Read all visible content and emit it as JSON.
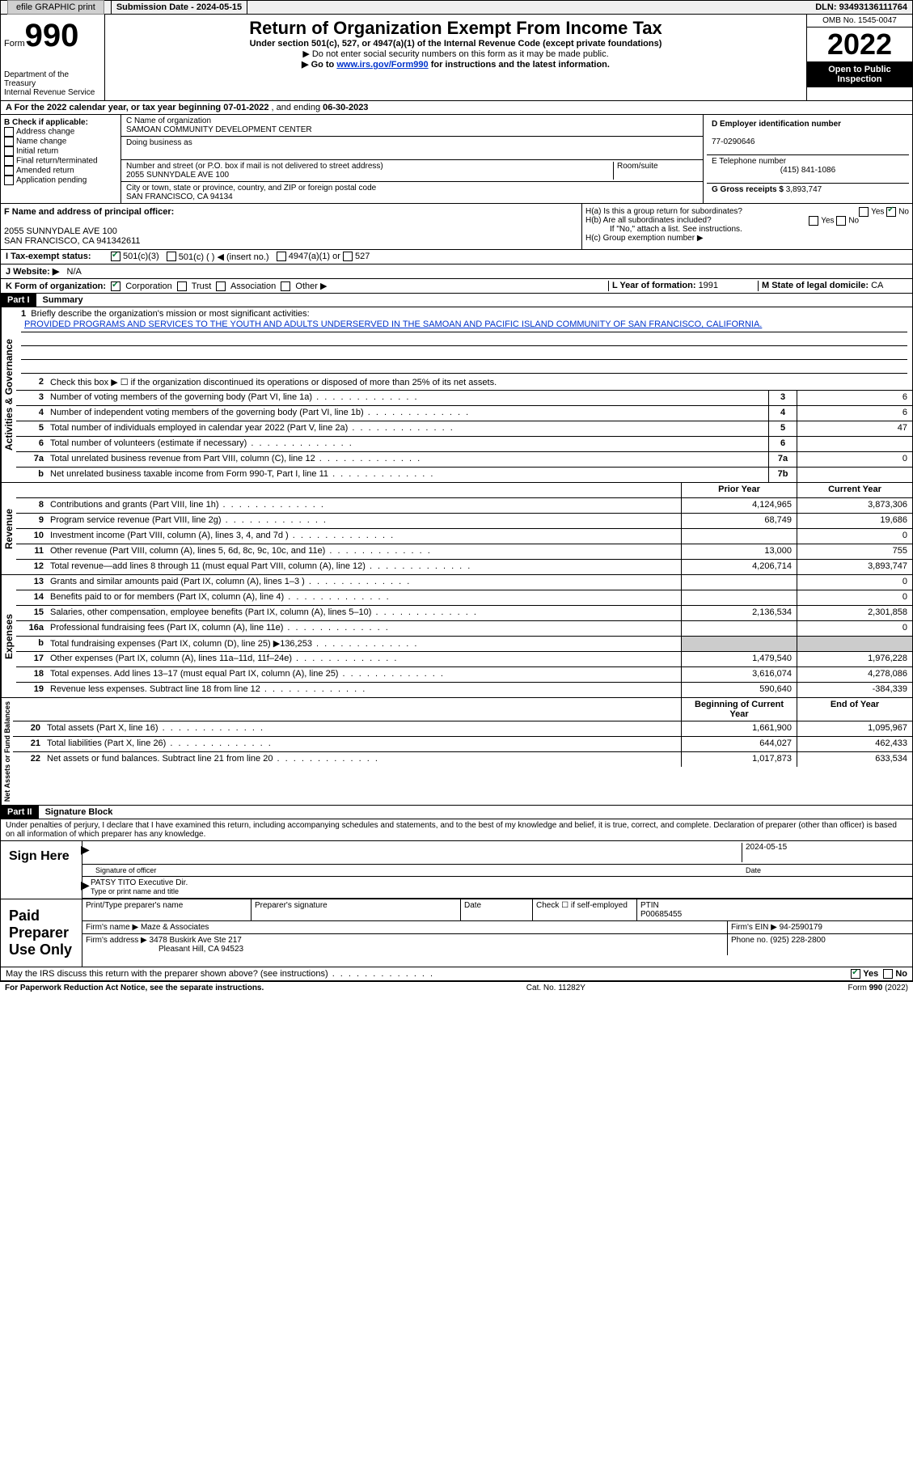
{
  "topbar": {
    "efile": "efile GRAPHIC print",
    "submission_label": "Submission Date - ",
    "submission_date": "2024-05-15",
    "dln_label": "DLN: ",
    "dln": "93493136111764"
  },
  "header": {
    "form_word": "Form",
    "form_num": "990",
    "dept": "Department of the Treasury",
    "irs": "Internal Revenue Service",
    "title": "Return of Organization Exempt From Income Tax",
    "subtitle": "Under section 501(c), 527, or 4947(a)(1) of the Internal Revenue Code (except private foundations)",
    "note1": "▶ Do not enter social security numbers on this form as it may be made public.",
    "note2_pre": "▶ Go to ",
    "note2_link": "www.irs.gov/Form990",
    "note2_post": " for instructions and the latest information.",
    "omb": "OMB No. 1545-0047",
    "year": "2022",
    "open": "Open to Public Inspection"
  },
  "line_a": {
    "text_pre": "A For the 2022 calendar year, or tax year beginning ",
    "begin": "07-01-2022",
    "mid": " , and ending ",
    "end": "06-30-2023"
  },
  "col_b": {
    "header": "B Check if applicable:",
    "opts": [
      "Address change",
      "Name change",
      "Initial return",
      "Final return/terminated",
      "Amended return",
      "Application pending"
    ]
  },
  "col_c": {
    "name_label": "C Name of organization",
    "name": "SAMOAN COMMUNITY DEVELOPMENT CENTER",
    "dba_label": "Doing business as",
    "addr_label": "Number and street (or P.O. box if mail is not delivered to street address)",
    "room_label": "Room/suite",
    "addr": "2055 SUNNYDALE AVE 100",
    "city_label": "City or town, state or province, country, and ZIP or foreign postal code",
    "city": "SAN FRANCISCO, CA  94134"
  },
  "col_d": {
    "ein_label": "D Employer identification number",
    "ein": "77-0290646",
    "phone_label": "E Telephone number",
    "phone": "(415) 841-1086",
    "gross_label": "G Gross receipts $ ",
    "gross": "3,893,747"
  },
  "section_f": {
    "label": "F Name and address of principal officer:",
    "addr1": "2055 SUNNYDALE AVE 100",
    "addr2": "SAN FRANCISCO, CA  941342611"
  },
  "section_h": {
    "ha": "H(a)  Is this a group return for subordinates?",
    "hb": "H(b)  Are all subordinates included?",
    "hb_note": "If \"No,\" attach a list. See instructions.",
    "hc": "H(c)  Group exemption number ▶"
  },
  "line_i": {
    "label": "I  Tax-exempt status:",
    "opt1": "501(c)(3)",
    "opt2": "501(c) (  ) ◀ (insert no.)",
    "opt3": "4947(a)(1) or",
    "opt4": "527"
  },
  "line_j": {
    "label": "J  Website: ▶",
    "val": "N/A"
  },
  "line_k": {
    "label": "K Form of organization:",
    "opts": [
      "Corporation",
      "Trust",
      "Association",
      "Other ▶"
    ],
    "l_label": "L Year of formation: ",
    "l_val": "1991",
    "m_label": "M State of legal domicile: ",
    "m_val": "CA"
  },
  "parts": {
    "p1": "Part I",
    "p1_title": "Summary",
    "p2": "Part II",
    "p2_title": "Signature Block"
  },
  "summary": {
    "vlabels": [
      "Activities & Governance",
      "Revenue",
      "Expenses",
      "Net Assets or Fund Balances"
    ],
    "line1_label": "Briefly describe the organization's mission or most significant activities:",
    "line1_text": "PROVIDED PROGRAMS AND SERVICES TO THE YOUTH AND ADULTS UNDERSERVED IN THE SAMOAN AND PACIFIC ISLAND COMMUNITY OF SAN FRANCISCO, CALIFORNIA.",
    "line2": "Check this box ▶ ☐ if the organization discontinued its operations or disposed of more than 25% of its net assets.",
    "rows_ag": [
      {
        "n": "3",
        "d": "Number of voting members of the governing body (Part VI, line 1a)",
        "box": "3",
        "v": "6"
      },
      {
        "n": "4",
        "d": "Number of independent voting members of the governing body (Part VI, line 1b)",
        "box": "4",
        "v": "6"
      },
      {
        "n": "5",
        "d": "Total number of individuals employed in calendar year 2022 (Part V, line 2a)",
        "box": "5",
        "v": "47"
      },
      {
        "n": "6",
        "d": "Total number of volunteers (estimate if necessary)",
        "box": "6",
        "v": ""
      },
      {
        "n": "7a",
        "d": "Total unrelated business revenue from Part VIII, column (C), line 12",
        "box": "7a",
        "v": "0"
      },
      {
        "n": "b",
        "d": "Net unrelated business taxable income from Form 990-T, Part I, line 11",
        "box": "7b",
        "v": ""
      }
    ],
    "col_prior": "Prior Year",
    "col_current": "Current Year",
    "col_begin": "Beginning of Current Year",
    "col_end": "End of Year",
    "rows_rev": [
      {
        "n": "8",
        "d": "Contributions and grants (Part VIII, line 1h)",
        "p": "4,124,965",
        "c": "3,873,306"
      },
      {
        "n": "9",
        "d": "Program service revenue (Part VIII, line 2g)",
        "p": "68,749",
        "c": "19,686"
      },
      {
        "n": "10",
        "d": "Investment income (Part VIII, column (A), lines 3, 4, and 7d )",
        "p": "",
        "c": "0"
      },
      {
        "n": "11",
        "d": "Other revenue (Part VIII, column (A), lines 5, 6d, 8c, 9c, 10c, and 11e)",
        "p": "13,000",
        "c": "755"
      },
      {
        "n": "12",
        "d": "Total revenue—add lines 8 through 11 (must equal Part VIII, column (A), line 12)",
        "p": "4,206,714",
        "c": "3,893,747"
      }
    ],
    "rows_exp": [
      {
        "n": "13",
        "d": "Grants and similar amounts paid (Part IX, column (A), lines 1–3 )",
        "p": "",
        "c": "0"
      },
      {
        "n": "14",
        "d": "Benefits paid to or for members (Part IX, column (A), line 4)",
        "p": "",
        "c": "0"
      },
      {
        "n": "15",
        "d": "Salaries, other compensation, employee benefits (Part IX, column (A), lines 5–10)",
        "p": "2,136,534",
        "c": "2,301,858"
      },
      {
        "n": "16a",
        "d": "Professional fundraising fees (Part IX, column (A), line 11e)",
        "p": "",
        "c": "0"
      },
      {
        "n": "b",
        "d": "Total fundraising expenses (Part IX, column (D), line 25) ▶136,253",
        "p": "shade",
        "c": "shade"
      },
      {
        "n": "17",
        "d": "Other expenses (Part IX, column (A), lines 11a–11d, 11f–24e)",
        "p": "1,479,540",
        "c": "1,976,228"
      },
      {
        "n": "18",
        "d": "Total expenses. Add lines 13–17 (must equal Part IX, column (A), line 25)",
        "p": "3,616,074",
        "c": "4,278,086"
      },
      {
        "n": "19",
        "d": "Revenue less expenses. Subtract line 18 from line 12",
        "p": "590,640",
        "c": "-384,339"
      }
    ],
    "rows_net": [
      {
        "n": "20",
        "d": "Total assets (Part X, line 16)",
        "p": "1,661,900",
        "c": "1,095,967"
      },
      {
        "n": "21",
        "d": "Total liabilities (Part X, line 26)",
        "p": "644,027",
        "c": "462,433"
      },
      {
        "n": "22",
        "d": "Net assets or fund balances. Subtract line 21 from line 20",
        "p": "1,017,873",
        "c": "633,534"
      }
    ]
  },
  "sig": {
    "penalty": "Under penalties of perjury, I declare that I have examined this return, including accompanying schedules and statements, and to the best of my knowledge and belief, it is true, correct, and complete. Declaration of preparer (other than officer) is based on all information of which preparer has any knowledge.",
    "sign_here": "Sign Here",
    "sig_officer": "Signature of officer",
    "date_label": "Date",
    "date": "2024-05-15",
    "name": "PATSY TITO Executive Dir.",
    "name_label": "Type or print name and title"
  },
  "prep": {
    "label": "Paid Preparer Use Only",
    "h1": "Print/Type preparer's name",
    "h2": "Preparer's signature",
    "h3": "Date",
    "h4_pre": "Check ☐ if self-employed",
    "h5": "PTIN",
    "ptin": "P00685455",
    "firm_label": "Firm's name    ▶ ",
    "firm": "Maze & Associates",
    "ein_label": "Firm's EIN ▶ ",
    "ein": "94-2590179",
    "addr_label": "Firm's address ▶ ",
    "addr1": "3478 Buskirk Ave Ste 217",
    "addr2": "Pleasant Hill, CA  94523",
    "phone_label": "Phone no. ",
    "phone": "(925) 228-2800"
  },
  "bottom": {
    "q": "May the IRS discuss this return with the preparer shown above? (see instructions)",
    "yes": "Yes",
    "no": "No"
  },
  "footer": {
    "left": "For Paperwork Reduction Act Notice, see the separate instructions.",
    "mid": "Cat. No. 11282Y",
    "right": "Form 990 (2022)"
  }
}
